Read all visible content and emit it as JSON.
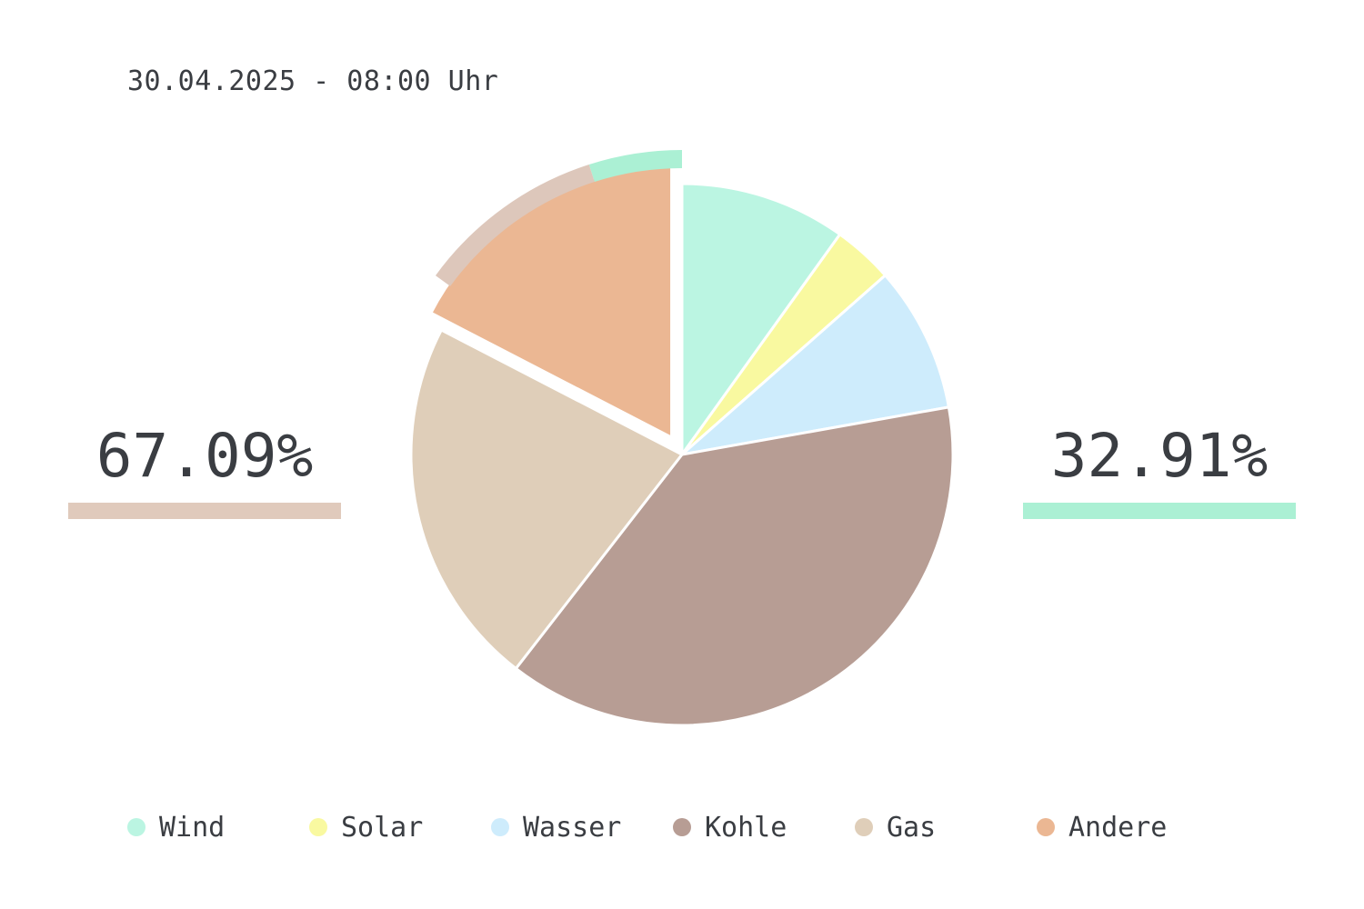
{
  "timestamp": "30.04.2025 - 08:00 Uhr",
  "summary": {
    "left_value": "67.09%",
    "left_color": "#e0cabc",
    "right_value": "32.91%",
    "right_color": "#abf0d4"
  },
  "chart_data": {
    "type": "pie",
    "start_angle": "12 o'clock, clockwise",
    "exploded_slices": [
      "Andere"
    ],
    "slices": [
      {
        "label": "Wind",
        "value": 9.9,
        "color": "#bbf5e2"
      },
      {
        "label": "Solar",
        "value": 3.6,
        "color": "#f9f9a0"
      },
      {
        "label": "Wasser",
        "value": 8.7,
        "color": "#ceecfc"
      },
      {
        "label": "Kohle",
        "value": 38.3,
        "color": "#b79d94"
      },
      {
        "label": "Gas",
        "value": 22.1,
        "color": "#dfceb9"
      },
      {
        "label": "Andere",
        "value": 17.4,
        "color": "#ebb793"
      }
    ],
    "outer_arcs": [
      {
        "share": 32.91,
        "color": "#abf0d4"
      },
      {
        "share": 67.09,
        "color": "#ddc7bb"
      }
    ],
    "legend_position": "bottom"
  }
}
